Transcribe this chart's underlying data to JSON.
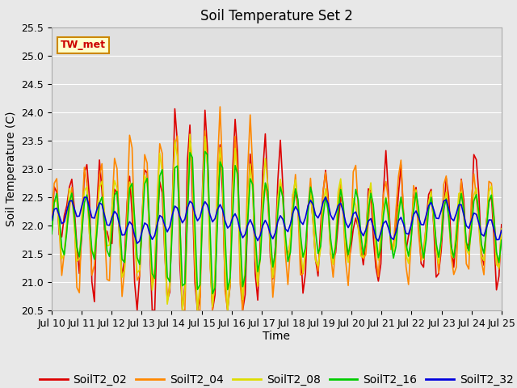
{
  "title": "Soil Temperature Set 2",
  "xlabel": "Time",
  "ylabel": "Soil Temperature (C)",
  "ylim": [
    20.5,
    25.5
  ],
  "xlim_days": [
    0,
    15
  ],
  "x_tick_labels": [
    "Jul 10",
    "Jul 11",
    "Jul 12",
    "Jul 13",
    "Jul 14",
    "Jul 15",
    "Jul 16",
    "Jul 17",
    "Jul 18",
    "Jul 19",
    "Jul 20",
    "Jul 21",
    "Jul 22",
    "Jul 23",
    "Jul 24",
    "Jul 25"
  ],
  "series_colors": {
    "SoilT2_02": "#dd0000",
    "SoilT2_04": "#ff8800",
    "SoilT2_08": "#dddd00",
    "SoilT2_16": "#00cc00",
    "SoilT2_32": "#0000dd"
  },
  "annotation_text": "TW_met",
  "annotation_color": "#cc0000",
  "annotation_bg": "#ffffcc",
  "annotation_border": "#cc8800",
  "fig_bg_color": "#e8e8e8",
  "plot_bg_color": "#e0e0e0",
  "grid_color": "#ffffff",
  "title_fontsize": 12,
  "axis_label_fontsize": 10,
  "tick_fontsize": 9,
  "legend_fontsize": 10,
  "line_width": 1.2
}
